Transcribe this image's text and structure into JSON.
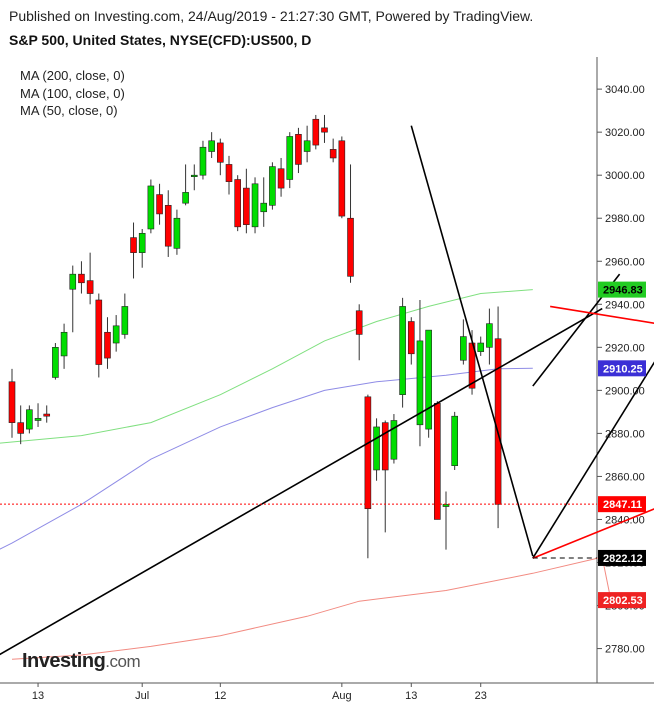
{
  "header": {
    "published": "Published on Investing.com, 24/Aug/2019 - 21:27:30 GMT, Powered by TradingView.",
    "symbol": "S&P 500, United States, NYSE(CFD):US500, D"
  },
  "ma_legend": [
    "MA (200, close, 0)",
    "MA (100, close, 0)",
    "MA (50, close, 0)"
  ],
  "logo": {
    "text": "Investing",
    "suffix": ".com"
  },
  "chart_data": {
    "type": "candlestick",
    "title": "S&P 500, United States, NYSE(CFD):US500, D",
    "xlabel": "",
    "ylabel": "",
    "ylim": [
      2764,
      3054
    ],
    "y_ticks": [
      2780,
      2800,
      2820,
      2840,
      2860,
      2880,
      2900,
      2920,
      2940,
      2960,
      2980,
      3000,
      3020,
      3040
    ],
    "x_tick_labels": [
      {
        "label": "13",
        "date": "2019-06-13"
      },
      {
        "label": "Jul",
        "date": "2019-07-01"
      },
      {
        "label": "12",
        "date": "2019-07-12"
      },
      {
        "label": "Aug",
        "date": "2019-08-01"
      },
      {
        "label": "13",
        "date": "2019-08-13"
      },
      {
        "label": "23",
        "date": "2019-08-23"
      }
    ],
    "candles": [
      {
        "date": "2019-06-10",
        "open": 2904,
        "high": 2910,
        "low": 2878,
        "close": 2885
      },
      {
        "date": "2019-06-11",
        "open": 2885,
        "high": 2893,
        "low": 2875,
        "close": 2880
      },
      {
        "date": "2019-06-12",
        "open": 2882,
        "high": 2893,
        "low": 2880,
        "close": 2891
      },
      {
        "date": "2019-06-13",
        "open": 2886,
        "high": 2894,
        "low": 2883,
        "close": 2887
      },
      {
        "date": "2019-06-14",
        "open": 2889,
        "high": 2893,
        "low": 2885,
        "close": 2888
      },
      {
        "date": "2019-06-17",
        "open": 2906,
        "high": 2922,
        "low": 2905,
        "close": 2920
      },
      {
        "date": "2019-06-18",
        "open": 2916,
        "high": 2931,
        "low": 2910,
        "close": 2927
      },
      {
        "date": "2019-06-19",
        "open": 2947,
        "high": 2958,
        "low": 2927,
        "close": 2954
      },
      {
        "date": "2019-06-20",
        "open": 2954,
        "high": 2960,
        "low": 2945,
        "close": 2950
      },
      {
        "date": "2019-06-21",
        "open": 2951,
        "high": 2964,
        "low": 2940,
        "close": 2945
      },
      {
        "date": "2019-06-24",
        "open": 2942,
        "high": 2945,
        "low": 2906,
        "close": 2912
      },
      {
        "date": "2019-06-25",
        "open": 2927,
        "high": 2934,
        "low": 2910,
        "close": 2915
      },
      {
        "date": "2019-06-26",
        "open": 2922,
        "high": 2935,
        "low": 2918,
        "close": 2930
      },
      {
        "date": "2019-06-27",
        "open": 2926,
        "high": 2945,
        "low": 2924,
        "close": 2939
      },
      {
        "date": "2019-07-01",
        "open": 2971,
        "high": 2978,
        "low": 2952,
        "close": 2964
      },
      {
        "date": "2019-07-02",
        "open": 2964,
        "high": 2975,
        "low": 2957,
        "close": 2973
      },
      {
        "date": "2019-07-03",
        "open": 2975,
        "high": 2998,
        "low": 2973,
        "close": 2995
      },
      {
        "date": "2019-07-05",
        "open": 2991,
        "high": 2996,
        "low": 2977,
        "close": 2982
      },
      {
        "date": "2019-07-08",
        "open": 2986,
        "high": 2993,
        "low": 2962,
        "close": 2967
      },
      {
        "date": "2019-07-09",
        "open": 2966,
        "high": 2984,
        "low": 2963,
        "close": 2980
      },
      {
        "date": "2019-07-10",
        "open": 2987,
        "high": 3005,
        "low": 2986,
        "close": 2992
      },
      {
        "date": "2019-07-11",
        "open": 3000,
        "high": 3005,
        "low": 2993,
        "close": 3000
      },
      {
        "date": "2019-07-12",
        "open": 3000,
        "high": 3016,
        "low": 2998,
        "close": 3013
      },
      {
        "date": "2019-07-15",
        "open": 3011,
        "high": 3020,
        "low": 3008,
        "close": 3016
      },
      {
        "date": "2019-07-16",
        "open": 3015,
        "high": 3017,
        "low": 3000,
        "close": 3006
      },
      {
        "date": "2019-07-17",
        "open": 3005,
        "high": 3009,
        "low": 2991,
        "close": 2997
      },
      {
        "date": "2019-07-18",
        "open": 2998,
        "high": 3000,
        "low": 2974,
        "close": 2976
      },
      {
        "date": "2019-07-19",
        "open": 2994,
        "high": 3003,
        "low": 2973,
        "close": 2977
      },
      {
        "date": "2019-07-22",
        "open": 2976,
        "high": 2999,
        "low": 2973,
        "close": 2996
      },
      {
        "date": "2019-07-23",
        "open": 2983,
        "high": 2999,
        "low": 2976,
        "close": 2987
      },
      {
        "date": "2019-07-24",
        "open": 2986,
        "high": 3006,
        "low": 2984,
        "close": 3004
      },
      {
        "date": "2019-07-25",
        "open": 3003,
        "high": 3008,
        "low": 2990,
        "close": 2994
      },
      {
        "date": "2019-07-26",
        "open": 2998,
        "high": 3020,
        "low": 2994,
        "close": 3018
      },
      {
        "date": "2019-07-29",
        "open": 3019,
        "high": 3022,
        "low": 3001,
        "close": 3005
      },
      {
        "date": "2019-07-30",
        "open": 3011,
        "high": 3023,
        "low": 3006,
        "close": 3016
      },
      {
        "date": "2019-07-31",
        "open": 3026,
        "high": 3028,
        "low": 3012,
        "close": 3014
      },
      {
        "date": "2019-08-01",
        "open": 3022,
        "high": 3028,
        "low": 3015,
        "close": 3020
      },
      {
        "date": "2019-08-02",
        "open": 3012,
        "high": 3017,
        "low": 3006,
        "close": 3008
      },
      {
        "date": "2019-08-05",
        "open": 3016,
        "high": 3018,
        "low": 2980,
        "close": 2981
      },
      {
        "date": "2019-08-06",
        "open": 2980,
        "high": 3005,
        "low": 2950,
        "close": 2953
      },
      {
        "date": "2019-08-07",
        "open": 2937,
        "high": 2940,
        "low": 2914,
        "close": 2926
      },
      {
        "date": "2019-08-08",
        "open": 2897,
        "high": 2898,
        "low": 2822,
        "close": 2845
      },
      {
        "date": "2019-08-09",
        "open": 2863,
        "high": 2887,
        "low": 2858,
        "close": 2883
      },
      {
        "date": "2019-08-12",
        "open": 2885,
        "high": 2886,
        "low": 2834,
        "close": 2863
      },
      {
        "date": "2019-08-13",
        "open": 2868,
        "high": 2889,
        "low": 2866,
        "close": 2886
      },
      {
        "date": "2019-08-14",
        "open": 2898,
        "high": 2943,
        "low": 2892,
        "close": 2939
      },
      {
        "date": "2019-08-15",
        "open": 2932,
        "high": 2934,
        "low": 2912,
        "close": 2917
      },
      {
        "date": "2019-08-16",
        "open": 2884,
        "high": 2942,
        "low": 2874,
        "close": 2923
      },
      {
        "date": "2019-08-19",
        "open": 2882,
        "high": 2926,
        "low": 2878,
        "close": 2928
      },
      {
        "date": "2019-08-20",
        "open": 2894,
        "high": 2895,
        "low": 2840,
        "close": 2840
      },
      {
        "date": "2019-08-21",
        "open": 2846,
        "high": 2853,
        "low": 2826,
        "close": 2847
      },
      {
        "date": "2019-08-22",
        "open": 2865,
        "high": 2890,
        "low": 2863,
        "close": 2888
      },
      {
        "date": "2019-08-23",
        "open": 2914,
        "high": 2933,
        "low": 2912,
        "close": 2925
      },
      {
        "date": "2019-08-26",
        "open": 2922,
        "high": 2928,
        "low": 2898,
        "close": 2901
      },
      {
        "date": "2019-08-27",
        "open": 2918,
        "high": 2925,
        "low": 2916,
        "close": 2922
      },
      {
        "date": "2019-08-28",
        "open": 2920,
        "high": 2938,
        "low": 2912,
        "close": 2931
      },
      {
        "date": "2019-08-29",
        "open": 2924,
        "high": 2939,
        "low": 2836,
        "close": 2847
      }
    ],
    "moving_averages": [
      {
        "name": "MA (200, close, 0)",
        "color": "#f28b82",
        "last": 2802.53,
        "points": [
          [
            0,
            2775
          ],
          [
            8,
            2777
          ],
          [
            16,
            2781
          ],
          [
            24,
            2786
          ],
          [
            34,
            2795
          ],
          [
            40,
            2802
          ],
          [
            50,
            2807
          ],
          [
            60,
            2815
          ],
          [
            68,
            2822.5
          ],
          [
            69,
            2802.53
          ]
        ]
      },
      {
        "name": "MA (100, close, 0)",
        "color": "#8f8ce6",
        "last": 2910.25,
        "points": [
          [
            -8,
            2813
          ],
          [
            0,
            2829
          ],
          [
            8,
            2847
          ],
          [
            16,
            2868
          ],
          [
            24,
            2883
          ],
          [
            30,
            2892
          ],
          [
            36,
            2900
          ],
          [
            42,
            2904
          ],
          [
            50,
            2907
          ],
          [
            56,
            2910
          ],
          [
            60,
            2910.25
          ]
        ]
      },
      {
        "name": "MA (50, close, 0)",
        "color": "#80e080",
        "last": 2946.83,
        "points": [
          [
            -8,
            2873
          ],
          [
            0,
            2876
          ],
          [
            8,
            2879
          ],
          [
            16,
            2885
          ],
          [
            24,
            2898
          ],
          [
            30,
            2910
          ],
          [
            36,
            2923
          ],
          [
            42,
            2932
          ],
          [
            48,
            2939
          ],
          [
            54,
            2945
          ],
          [
            60,
            2946.83
          ]
        ]
      }
    ],
    "trendlines": [
      {
        "color": "#000000",
        "points": [
          [
            -8,
            2762
          ],
          [
            68,
            2938
          ]
        ]
      },
      {
        "color": "#000000",
        "points": [
          [
            46,
            3023
          ],
          [
            60,
            2823
          ]
        ]
      },
      {
        "color": "#000000",
        "points": [
          [
            60,
            2902
          ],
          [
            70,
            2954
          ]
        ]
      },
      {
        "color": "#000000",
        "points": [
          [
            60,
            2822
          ],
          [
            76,
            2926
          ]
        ]
      },
      {
        "color": "#ff0000",
        "points": [
          [
            62,
            2939
          ],
          [
            82,
            2926
          ]
        ]
      },
      {
        "color": "#ff0000",
        "points": [
          [
            60,
            2822
          ],
          [
            82,
            2858
          ]
        ]
      }
    ],
    "hlines": [
      {
        "value": 2847.11,
        "color": "#ff0000",
        "style": "dotted"
      },
      {
        "value": 2822.12,
        "color": "#000000",
        "style": "dashed"
      }
    ],
    "price_labels": [
      {
        "value": "2946.83",
        "y": 2946.83,
        "bg": "#22cc22",
        "fg": "#000000"
      },
      {
        "value": "2910.25",
        "y": 2910.25,
        "bg": "#3b2fd6",
        "fg": "#ffffff"
      },
      {
        "value": "2847.11",
        "y": 2847.11,
        "bg": "#ff0000",
        "fg": "#ffffff"
      },
      {
        "value": "2822.12",
        "y": 2822.12,
        "bg": "#000000",
        "fg": "#ffffff"
      },
      {
        "value": "2802.53",
        "y": 2802.53,
        "bg": "#ee2222",
        "fg": "#ffffff"
      }
    ],
    "colors": {
      "up": "#00dd00",
      "down": "#ff0000",
      "axis": "#555555",
      "grid": "none"
    }
  }
}
